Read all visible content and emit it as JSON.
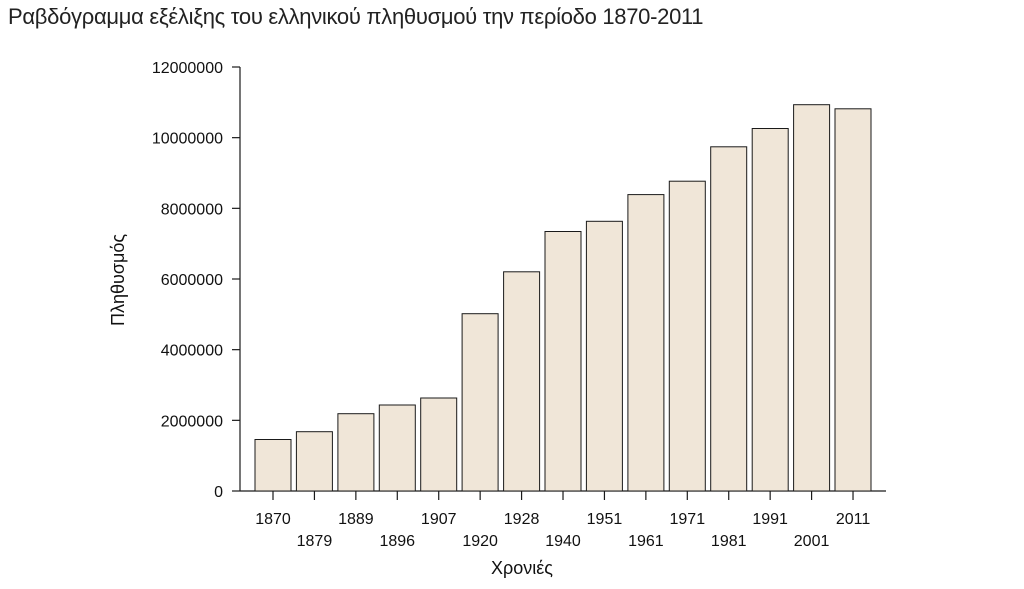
{
  "chart_data": {
    "type": "bar",
    "title": "Ραβδόγραμμα εξέλιξης του ελληνικού πληθυσμού την περίοδο 1870-2011",
    "xlabel": "Χρονιές",
    "ylabel": "Πληθυσμός",
    "ylim": [
      0,
      12000000
    ],
    "yticks": [
      "0",
      "2000000",
      "4000000",
      "6000000",
      "8000000",
      "10000000",
      "12000000"
    ],
    "categories": [
      "1870",
      "1879",
      "1889",
      "1896",
      "1907",
      "1920",
      "1928",
      "1940",
      "1951",
      "1961",
      "1971",
      "1981",
      "1991",
      "2001",
      "2011"
    ],
    "values": [
      1457894,
      1679470,
      2187208,
      2433806,
      2631952,
      5016889,
      6204684,
      7344860,
      7632801,
      8388553,
      8768372,
      9740417,
      10259900,
      10934097,
      10816286
    ],
    "bar_color": "#f0e6d8",
    "grid": false,
    "legend": "none"
  }
}
